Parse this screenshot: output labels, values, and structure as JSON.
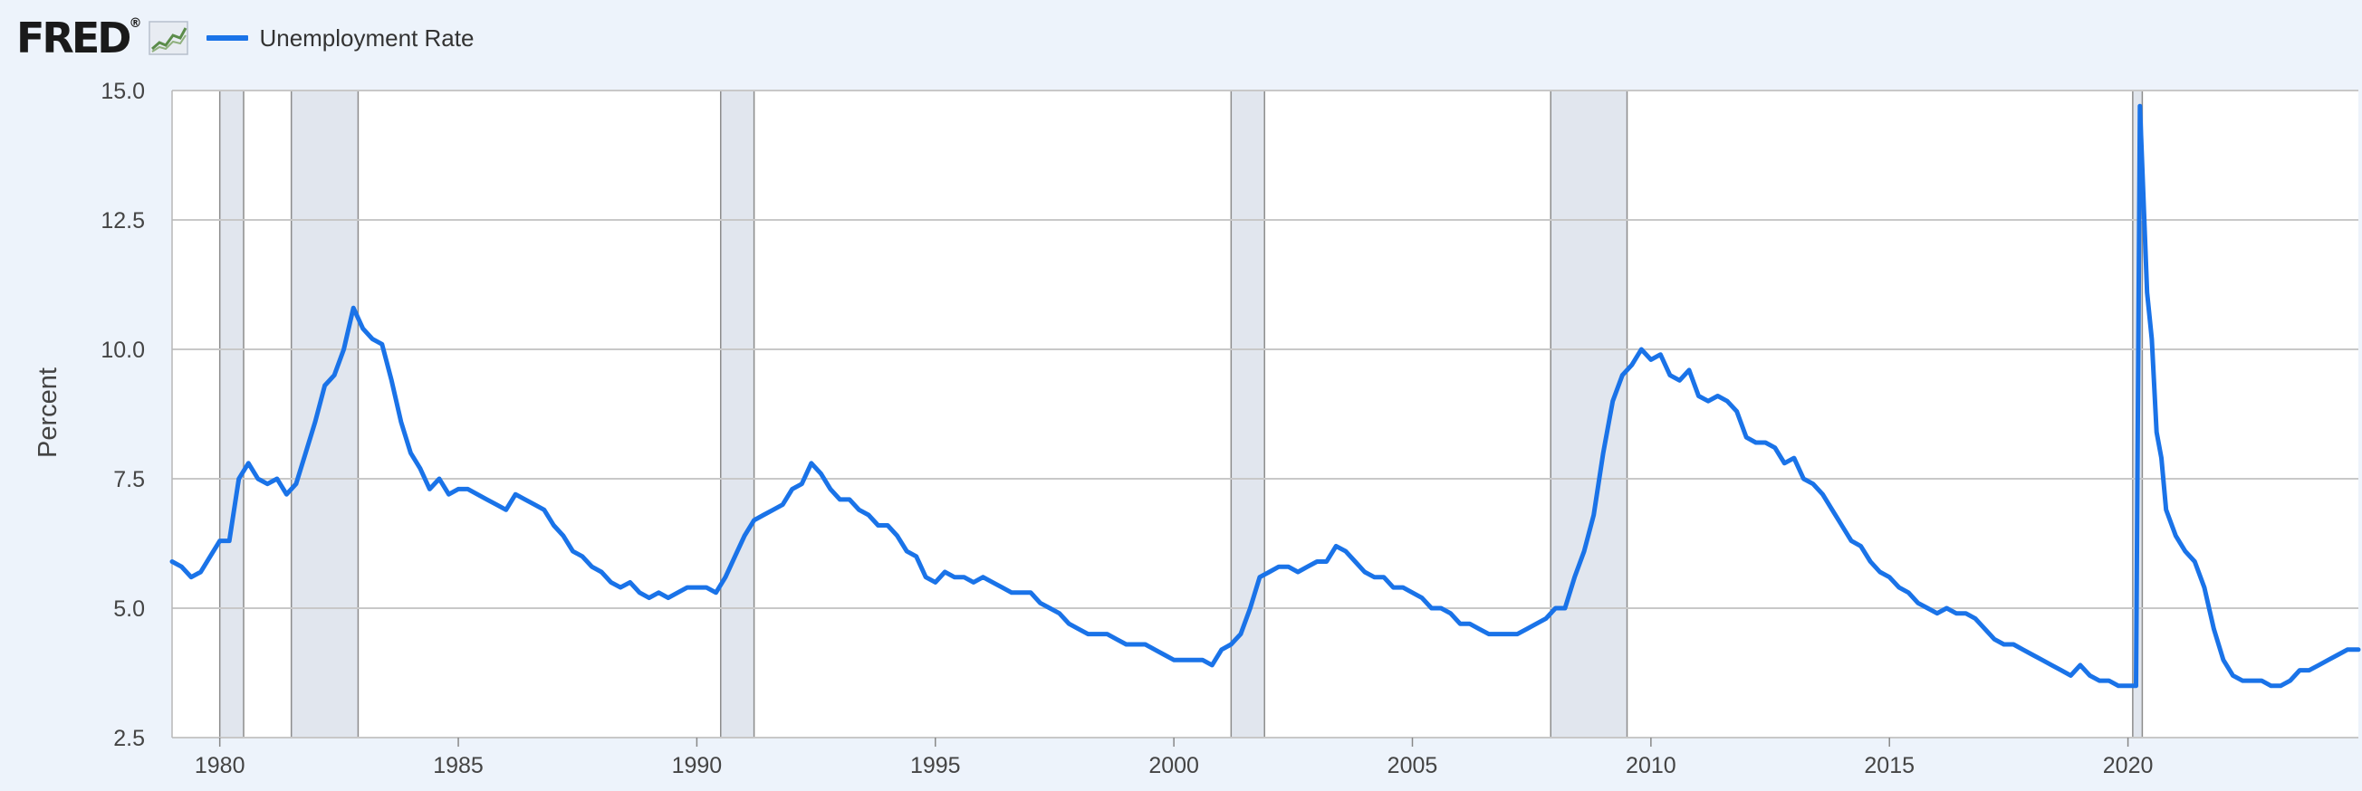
{
  "brand": {
    "logo_text": "FRED",
    "logo_mark": "®"
  },
  "chart_data": {
    "type": "line",
    "title": "",
    "xlabel": "",
    "ylabel": "Percent",
    "xlim": [
      1979.0,
      2024.83
    ],
    "ylim": [
      2.5,
      15.0
    ],
    "grid": true,
    "legend_position": "top-left",
    "x_ticks": [
      "1980",
      "1985",
      "1990",
      "1995",
      "2000",
      "2005",
      "2010",
      "2015",
      "2020"
    ],
    "y_ticks": [
      "2.5",
      "5.0",
      "7.5",
      "10.0",
      "12.5",
      "15.0"
    ],
    "recessions": [
      {
        "start": 1980.0,
        "end": 1980.5
      },
      {
        "start": 1981.5,
        "end": 1982.9
      },
      {
        "start": 1990.5,
        "end": 1991.2
      },
      {
        "start": 2001.2,
        "end": 2001.9
      },
      {
        "start": 2007.9,
        "end": 2009.5
      },
      {
        "start": 2020.1,
        "end": 2020.3
      }
    ],
    "colors": {
      "line": "#1a73e8",
      "recession": "#e1e6ee",
      "grid": "#c8c8c8",
      "plot_bg": "#ffffff"
    },
    "series": [
      {
        "name": "Unemployment Rate",
        "points": [
          [
            1979.0,
            5.9
          ],
          [
            1979.2,
            5.8
          ],
          [
            1979.4,
            5.6
          ],
          [
            1979.6,
            5.7
          ],
          [
            1979.8,
            6.0
          ],
          [
            1980.0,
            6.3
          ],
          [
            1980.2,
            6.3
          ],
          [
            1980.4,
            7.5
          ],
          [
            1980.6,
            7.8
          ],
          [
            1980.8,
            7.5
          ],
          [
            1981.0,
            7.4
          ],
          [
            1981.2,
            7.5
          ],
          [
            1981.4,
            7.2
          ],
          [
            1981.6,
            7.4
          ],
          [
            1981.8,
            8.0
          ],
          [
            1982.0,
            8.6
          ],
          [
            1982.2,
            9.3
          ],
          [
            1982.4,
            9.5
          ],
          [
            1982.6,
            10.0
          ],
          [
            1982.8,
            10.8
          ],
          [
            1983.0,
            10.4
          ],
          [
            1983.2,
            10.2
          ],
          [
            1983.4,
            10.1
          ],
          [
            1983.6,
            9.4
          ],
          [
            1983.8,
            8.6
          ],
          [
            1984.0,
            8.0
          ],
          [
            1984.2,
            7.7
          ],
          [
            1984.4,
            7.3
          ],
          [
            1984.6,
            7.5
          ],
          [
            1984.8,
            7.2
          ],
          [
            1985.0,
            7.3
          ],
          [
            1985.2,
            7.3
          ],
          [
            1985.4,
            7.2
          ],
          [
            1985.6,
            7.1
          ],
          [
            1985.8,
            7.0
          ],
          [
            1986.0,
            6.9
          ],
          [
            1986.2,
            7.2
          ],
          [
            1986.4,
            7.1
          ],
          [
            1986.6,
            7.0
          ],
          [
            1986.8,
            6.9
          ],
          [
            1987.0,
            6.6
          ],
          [
            1987.2,
            6.4
          ],
          [
            1987.4,
            6.1
          ],
          [
            1987.6,
            6.0
          ],
          [
            1987.8,
            5.8
          ],
          [
            1988.0,
            5.7
          ],
          [
            1988.2,
            5.5
          ],
          [
            1988.4,
            5.4
          ],
          [
            1988.6,
            5.5
          ],
          [
            1988.8,
            5.3
          ],
          [
            1989.0,
            5.2
          ],
          [
            1989.2,
            5.3
          ],
          [
            1989.4,
            5.2
          ],
          [
            1989.6,
            5.3
          ],
          [
            1989.8,
            5.4
          ],
          [
            1990.0,
            5.4
          ],
          [
            1990.2,
            5.4
          ],
          [
            1990.4,
            5.3
          ],
          [
            1990.6,
            5.6
          ],
          [
            1990.8,
            6.0
          ],
          [
            1991.0,
            6.4
          ],
          [
            1991.2,
            6.7
          ],
          [
            1991.4,
            6.8
          ],
          [
            1991.6,
            6.9
          ],
          [
            1991.8,
            7.0
          ],
          [
            1992.0,
            7.3
          ],
          [
            1992.2,
            7.4
          ],
          [
            1992.4,
            7.8
          ],
          [
            1992.6,
            7.6
          ],
          [
            1992.8,
            7.3
          ],
          [
            1993.0,
            7.1
          ],
          [
            1993.2,
            7.1
          ],
          [
            1993.4,
            6.9
          ],
          [
            1993.6,
            6.8
          ],
          [
            1993.8,
            6.6
          ],
          [
            1994.0,
            6.6
          ],
          [
            1994.2,
            6.4
          ],
          [
            1994.4,
            6.1
          ],
          [
            1994.6,
            6.0
          ],
          [
            1994.8,
            5.6
          ],
          [
            1995.0,
            5.5
          ],
          [
            1995.2,
            5.7
          ],
          [
            1995.4,
            5.6
          ],
          [
            1995.6,
            5.6
          ],
          [
            1995.8,
            5.5
          ],
          [
            1996.0,
            5.6
          ],
          [
            1996.2,
            5.5
          ],
          [
            1996.4,
            5.4
          ],
          [
            1996.6,
            5.3
          ],
          [
            1996.8,
            5.3
          ],
          [
            1997.0,
            5.3
          ],
          [
            1997.2,
            5.1
          ],
          [
            1997.4,
            5.0
          ],
          [
            1997.6,
            4.9
          ],
          [
            1997.8,
            4.7
          ],
          [
            1998.0,
            4.6
          ],
          [
            1998.2,
            4.5
          ],
          [
            1998.4,
            4.5
          ],
          [
            1998.6,
            4.5
          ],
          [
            1998.8,
            4.4
          ],
          [
            1999.0,
            4.3
          ],
          [
            1999.2,
            4.3
          ],
          [
            1999.4,
            4.3
          ],
          [
            1999.6,
            4.2
          ],
          [
            1999.8,
            4.1
          ],
          [
            2000.0,
            4.0
          ],
          [
            2000.2,
            4.0
          ],
          [
            2000.4,
            4.0
          ],
          [
            2000.6,
            4.0
          ],
          [
            2000.8,
            3.9
          ],
          [
            2001.0,
            4.2
          ],
          [
            2001.2,
            4.3
          ],
          [
            2001.4,
            4.5
          ],
          [
            2001.6,
            5.0
          ],
          [
            2001.8,
            5.6
          ],
          [
            2002.0,
            5.7
          ],
          [
            2002.2,
            5.8
          ],
          [
            2002.4,
            5.8
          ],
          [
            2002.6,
            5.7
          ],
          [
            2002.8,
            5.8
          ],
          [
            2003.0,
            5.9
          ],
          [
            2003.2,
            5.9
          ],
          [
            2003.4,
            6.2
          ],
          [
            2003.6,
            6.1
          ],
          [
            2003.8,
            5.9
          ],
          [
            2004.0,
            5.7
          ],
          [
            2004.2,
            5.6
          ],
          [
            2004.4,
            5.6
          ],
          [
            2004.6,
            5.4
          ],
          [
            2004.8,
            5.4
          ],
          [
            2005.0,
            5.3
          ],
          [
            2005.2,
            5.2
          ],
          [
            2005.4,
            5.0
          ],
          [
            2005.6,
            5.0
          ],
          [
            2005.8,
            4.9
          ],
          [
            2006.0,
            4.7
          ],
          [
            2006.2,
            4.7
          ],
          [
            2006.4,
            4.6
          ],
          [
            2006.6,
            4.5
          ],
          [
            2006.8,
            4.5
          ],
          [
            2007.0,
            4.5
          ],
          [
            2007.2,
            4.5
          ],
          [
            2007.4,
            4.6
          ],
          [
            2007.6,
            4.7
          ],
          [
            2007.8,
            4.8
          ],
          [
            2008.0,
            5.0
          ],
          [
            2008.2,
            5.0
          ],
          [
            2008.4,
            5.6
          ],
          [
            2008.6,
            6.1
          ],
          [
            2008.8,
            6.8
          ],
          [
            2009.0,
            8.0
          ],
          [
            2009.2,
            9.0
          ],
          [
            2009.4,
            9.5
          ],
          [
            2009.6,
            9.7
          ],
          [
            2009.8,
            10.0
          ],
          [
            2010.0,
            9.8
          ],
          [
            2010.2,
            9.9
          ],
          [
            2010.4,
            9.5
          ],
          [
            2010.6,
            9.4
          ],
          [
            2010.8,
            9.6
          ],
          [
            2011.0,
            9.1
          ],
          [
            2011.2,
            9.0
          ],
          [
            2011.4,
            9.1
          ],
          [
            2011.6,
            9.0
          ],
          [
            2011.8,
            8.8
          ],
          [
            2012.0,
            8.3
          ],
          [
            2012.2,
            8.2
          ],
          [
            2012.4,
            8.2
          ],
          [
            2012.6,
            8.1
          ],
          [
            2012.8,
            7.8
          ],
          [
            2013.0,
            7.9
          ],
          [
            2013.2,
            7.5
          ],
          [
            2013.4,
            7.4
          ],
          [
            2013.6,
            7.2
          ],
          [
            2013.8,
            6.9
          ],
          [
            2014.0,
            6.6
          ],
          [
            2014.2,
            6.3
          ],
          [
            2014.4,
            6.2
          ],
          [
            2014.6,
            5.9
          ],
          [
            2014.8,
            5.7
          ],
          [
            2015.0,
            5.6
          ],
          [
            2015.2,
            5.4
          ],
          [
            2015.4,
            5.3
          ],
          [
            2015.6,
            5.1
          ],
          [
            2015.8,
            5.0
          ],
          [
            2016.0,
            4.9
          ],
          [
            2016.2,
            5.0
          ],
          [
            2016.4,
            4.9
          ],
          [
            2016.6,
            4.9
          ],
          [
            2016.8,
            4.8
          ],
          [
            2017.0,
            4.6
          ],
          [
            2017.2,
            4.4
          ],
          [
            2017.4,
            4.3
          ],
          [
            2017.6,
            4.3
          ],
          [
            2017.8,
            4.2
          ],
          [
            2018.0,
            4.1
          ],
          [
            2018.2,
            4.0
          ],
          [
            2018.4,
            3.9
          ],
          [
            2018.6,
            3.8
          ],
          [
            2018.8,
            3.7
          ],
          [
            2019.0,
            3.9
          ],
          [
            2019.2,
            3.7
          ],
          [
            2019.4,
            3.6
          ],
          [
            2019.6,
            3.6
          ],
          [
            2019.8,
            3.5
          ],
          [
            2020.0,
            3.5
          ],
          [
            2020.17,
            3.5
          ],
          [
            2020.25,
            14.7
          ],
          [
            2020.4,
            11.1
          ],
          [
            2020.5,
            10.2
          ],
          [
            2020.6,
            8.4
          ],
          [
            2020.7,
            7.9
          ],
          [
            2020.8,
            6.9
          ],
          [
            2021.0,
            6.4
          ],
          [
            2021.2,
            6.1
          ],
          [
            2021.4,
            5.9
          ],
          [
            2021.6,
            5.4
          ],
          [
            2021.8,
            4.6
          ],
          [
            2022.0,
            4.0
          ],
          [
            2022.2,
            3.7
          ],
          [
            2022.4,
            3.6
          ],
          [
            2022.6,
            3.6
          ],
          [
            2022.8,
            3.6
          ],
          [
            2023.0,
            3.5
          ],
          [
            2023.2,
            3.5
          ],
          [
            2023.4,
            3.6
          ],
          [
            2023.6,
            3.8
          ],
          [
            2023.8,
            3.8
          ],
          [
            2024.0,
            3.9
          ],
          [
            2024.2,
            4.0
          ],
          [
            2024.4,
            4.1
          ],
          [
            2024.6,
            4.2
          ],
          [
            2024.83,
            4.2
          ]
        ]
      }
    ]
  }
}
